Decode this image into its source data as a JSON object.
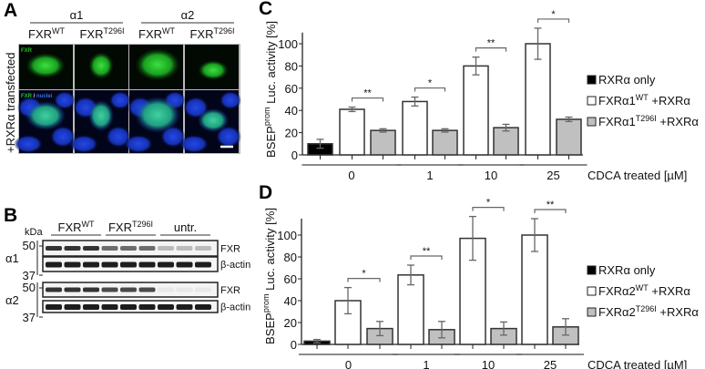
{
  "panels": {
    "a": "A",
    "b": "B",
    "c": "C",
    "d": "D"
  },
  "panel_a": {
    "groups": [
      "α1",
      "α2"
    ],
    "columns": [
      {
        "base": "FXR",
        "sup": "WT"
      },
      {
        "base": "FXR",
        "sup": "T296I"
      },
      {
        "base": "FXR",
        "sup": "WT"
      },
      {
        "base": "FXR",
        "sup": "T296I"
      }
    ],
    "row_label": "+RXRα transfected",
    "overlay_fxr": "FXR",
    "overlay_sep": " / ",
    "overlay_nuclei": "nuclei",
    "colors": {
      "fxr": "#22c02a",
      "nuclei": "#1a3cd8"
    }
  },
  "panel_b": {
    "kda": "kDa",
    "groups": [
      {
        "base": "FXR",
        "sup": "WT"
      },
      {
        "base": "FXR",
        "sup": "T296I"
      },
      {
        "base": "untr.",
        "sup": ""
      }
    ],
    "isoforms": [
      "α1",
      "α2"
    ],
    "markers": [
      "50",
      "37"
    ],
    "bands": [
      "FXR",
      "β-actin"
    ]
  },
  "chart_data": [
    {
      "type": "bar",
      "panel": "C",
      "ylabel": {
        "base": "BSEP",
        "sup": "prom",
        "rest": " Luc. activity [%]"
      },
      "xlabel": "CDCA treated [µM]",
      "ylim": [
        0,
        110
      ],
      "yticks": [
        0,
        20,
        40,
        60,
        80,
        100
      ],
      "groups": [
        "0",
        "1",
        "10",
        "25"
      ],
      "legend": [
        {
          "text": "RXRα only",
          "base": "RXRα only",
          "sup": "",
          "rest": "",
          "color": "#000000"
        },
        {
          "base": "FXRα1",
          "sup": "WT",
          "rest": " +RXRα",
          "color": "#ffffff"
        },
        {
          "base": "FXRα1",
          "sup": "T296I",
          "rest": " +RXRα",
          "color": "#c0c0c0"
        }
      ],
      "bars": [
        {
          "group": "0",
          "series": 0,
          "value": 10,
          "error": 4
        },
        {
          "group": "0",
          "series": 1,
          "value": 41,
          "error": 2
        },
        {
          "group": "0",
          "series": 2,
          "value": 22,
          "error": 1.5
        },
        {
          "group": "1",
          "series": 1,
          "value": 48,
          "error": 4
        },
        {
          "group": "1",
          "series": 2,
          "value": 22,
          "error": 1.5
        },
        {
          "group": "10",
          "series": 1,
          "value": 80,
          "error": 8
        },
        {
          "group": "10",
          "series": 2,
          "value": 24.5,
          "error": 3
        },
        {
          "group": "25",
          "series": 1,
          "value": 100,
          "error": 14
        },
        {
          "group": "25",
          "series": 2,
          "value": 32,
          "error": 2
        }
      ],
      "significance": [
        "**",
        "*",
        "**",
        "*"
      ]
    },
    {
      "type": "bar",
      "panel": "D",
      "ylabel": {
        "base": "BSEP",
        "sup": "prom",
        "rest": " Luc. activity [%]"
      },
      "xlabel": "CDCA treated [µM]",
      "ylim": [
        0,
        115
      ],
      "yticks": [
        0,
        20,
        40,
        60,
        80,
        100
      ],
      "groups": [
        "0",
        "1",
        "10",
        "25"
      ],
      "legend": [
        {
          "base": "RXRα only",
          "sup": "",
          "rest": "",
          "color": "#000000"
        },
        {
          "base": "FXRα2",
          "sup": "WT",
          "rest": " +RXRα",
          "color": "#ffffff"
        },
        {
          "base": "FXRα2",
          "sup": "T296I",
          "rest": " +RXRα",
          "color": "#c0c0c0"
        }
      ],
      "bars": [
        {
          "group": "0",
          "series": 0,
          "value": 3,
          "error": 1.5
        },
        {
          "group": "0",
          "series": 1,
          "value": 40,
          "error": 12
        },
        {
          "group": "0",
          "series": 2,
          "value": 14.5,
          "error": 6.5
        },
        {
          "group": "1",
          "series": 1,
          "value": 63.5,
          "error": 9
        },
        {
          "group": "1",
          "series": 2,
          "value": 13.5,
          "error": 7.5
        },
        {
          "group": "10",
          "series": 1,
          "value": 97,
          "error": 20
        },
        {
          "group": "10",
          "series": 2,
          "value": 14.5,
          "error": 6
        },
        {
          "group": "25",
          "series": 1,
          "value": 100,
          "error": 15
        },
        {
          "group": "25",
          "series": 2,
          "value": 16,
          "error": 7.5
        }
      ],
      "significance": [
        "*",
        "**",
        "*",
        "**"
      ]
    }
  ]
}
